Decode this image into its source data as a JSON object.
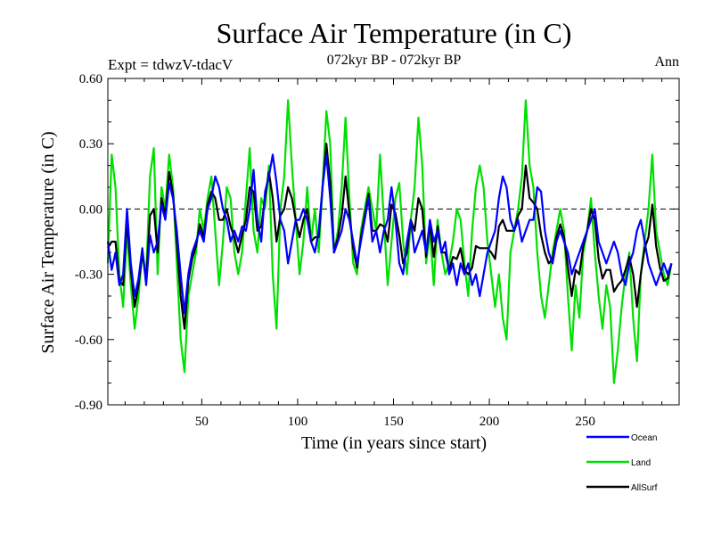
{
  "chart_data": {
    "type": "line",
    "title": "Surface Air Temperature (in C)",
    "subtitle_left": "Expt = tdwzV-tdacV",
    "subtitle_center": "072kyr BP - 072kyr BP",
    "subtitle_right": "Ann",
    "xlabel": "Time (in years since start)",
    "ylabel": "Surface Air Temperature (in C)",
    "xlim": [
      1,
      299
    ],
    "ylim": [
      -0.9,
      0.6
    ],
    "xticks": [
      50,
      100,
      150,
      200,
      250
    ],
    "xtick_labels": [
      "50",
      "100",
      "150",
      "200",
      "250"
    ],
    "yticks": [
      -0.9,
      -0.6,
      -0.3,
      0.0,
      0.3,
      0.6
    ],
    "ytick_labels": [
      "-0.90",
      "-0.60",
      "-0.30",
      "0.00",
      "0.30",
      "0.60"
    ],
    "reference_line": {
      "y": 0.0,
      "style": "dashed"
    },
    "legend_position": "bottom-right, below plot",
    "x_start": 1,
    "x_step": 2,
    "series": [
      {
        "name": "Ocean",
        "color": "#0000ff",
        "values": [
          -0.15,
          -0.28,
          -0.2,
          -0.35,
          -0.3,
          0.0,
          -0.25,
          -0.4,
          -0.32,
          -0.18,
          -0.35,
          -0.12,
          -0.2,
          -0.15,
          0.02,
          -0.05,
          0.12,
          0.05,
          -0.1,
          -0.3,
          -0.48,
          -0.3,
          -0.2,
          -0.15,
          -0.1,
          -0.15,
          0.0,
          0.05,
          0.15,
          0.1,
          0.0,
          -0.05,
          -0.15,
          -0.1,
          -0.15,
          -0.08,
          -0.1,
          0.0,
          0.18,
          -0.05,
          -0.15,
          0.08,
          0.15,
          0.25,
          0.12,
          -0.05,
          -0.1,
          -0.25,
          -0.15,
          -0.05,
          -0.05,
          0.0,
          -0.05,
          -0.15,
          -0.2,
          -0.1,
          0.1,
          0.25,
          0.05,
          -0.2,
          -0.15,
          -0.1,
          0.0,
          -0.05,
          -0.15,
          -0.25,
          -0.15,
          -0.05,
          0.05,
          -0.15,
          -0.1,
          -0.2,
          -0.1,
          -0.05,
          0.1,
          -0.05,
          -0.25,
          -0.3,
          -0.15,
          -0.05,
          -0.2,
          -0.15,
          -0.1,
          -0.2,
          -0.05,
          -0.15,
          -0.1,
          -0.2,
          -0.15,
          -0.3,
          -0.25,
          -0.35,
          -0.25,
          -0.3,
          -0.25,
          -0.35,
          -0.3,
          -0.4,
          -0.3,
          -0.2,
          -0.15,
          -0.1,
          0.05,
          0.15,
          0.1,
          -0.05,
          -0.1,
          -0.05,
          -0.15,
          -0.1,
          -0.05,
          -0.05,
          0.1,
          0.08,
          -0.1,
          -0.2,
          -0.25,
          -0.15,
          -0.1,
          -0.15,
          -0.2,
          -0.3,
          -0.25,
          -0.2,
          -0.15,
          -0.1,
          -0.05,
          0.0,
          -0.15,
          -0.2,
          -0.25,
          -0.2,
          -0.15,
          -0.2,
          -0.3,
          -0.35,
          -0.25,
          -0.2,
          -0.1,
          -0.05,
          -0.15,
          -0.25,
          -0.3,
          -0.35,
          -0.3,
          -0.25,
          -0.3,
          -0.25
        ],
        "x_extra_note": ""
      },
      {
        "name": "Land",
        "color": "#00e000",
        "values": [
          -0.25,
          0.25,
          0.1,
          -0.3,
          -0.45,
          -0.1,
          -0.35,
          -0.55,
          -0.4,
          -0.2,
          -0.3,
          0.15,
          0.28,
          -0.3,
          0.1,
          0.0,
          0.25,
          0.1,
          -0.25,
          -0.6,
          -0.75,
          -0.4,
          -0.3,
          -0.2,
          0.0,
          -0.1,
          0.05,
          0.15,
          -0.1,
          -0.35,
          -0.15,
          0.1,
          0.05,
          -0.2,
          -0.3,
          -0.2,
          0.05,
          0.28,
          -0.1,
          -0.2,
          0.05,
          0.0,
          0.2,
          -0.3,
          -0.55,
          0.0,
          0.15,
          0.5,
          0.2,
          -0.05,
          -0.3,
          -0.15,
          0.1,
          -0.15,
          0.0,
          -0.2,
          0.1,
          0.45,
          0.3,
          -0.2,
          -0.1,
          0.1,
          0.42,
          0.05,
          -0.25,
          -0.3,
          -0.1,
          0.0,
          0.1,
          0.0,
          -0.1,
          0.25,
          -0.05,
          -0.35,
          -0.15,
          0.05,
          0.12,
          -0.15,
          -0.3,
          -0.05,
          0.1,
          0.42,
          0.2,
          -0.25,
          -0.1,
          -0.35,
          -0.05,
          -0.2,
          -0.3,
          -0.25,
          -0.15,
          0.0,
          -0.05,
          -0.25,
          -0.4,
          -0.1,
          0.1,
          0.2,
          0.1,
          -0.15,
          -0.3,
          -0.45,
          -0.3,
          -0.5,
          -0.6,
          -0.2,
          -0.1,
          0.0,
          0.15,
          0.5,
          0.2,
          0.1,
          -0.2,
          -0.4,
          -0.5,
          -0.35,
          -0.2,
          -0.1,
          0.0,
          -0.1,
          -0.4,
          -0.65,
          -0.35,
          -0.5,
          -0.2,
          -0.1,
          0.05,
          -0.2,
          -0.4,
          -0.55,
          -0.35,
          -0.45,
          -0.8,
          -0.65,
          -0.45,
          -0.3,
          -0.2,
          -0.5,
          -0.7,
          -0.3,
          -0.15,
          0.0,
          0.25,
          -0.1,
          -0.2,
          -0.3,
          -0.35,
          -0.25
        ]
      },
      {
        "name": "AllSurf",
        "color": "#000000",
        "values": [
          -0.18,
          -0.15,
          -0.15,
          -0.33,
          -0.35,
          -0.05,
          -0.28,
          -0.45,
          -0.35,
          -0.2,
          -0.33,
          -0.03,
          0.0,
          -0.2,
          0.05,
          -0.03,
          0.17,
          0.07,
          -0.15,
          -0.4,
          -0.55,
          -0.33,
          -0.23,
          -0.17,
          -0.07,
          -0.13,
          0.02,
          0.08,
          0.05,
          -0.05,
          -0.05,
          0.0,
          -0.08,
          -0.13,
          -0.2,
          -0.12,
          -0.05,
          0.1,
          0.08,
          -0.1,
          -0.08,
          0.05,
          0.17,
          0.05,
          -0.15,
          -0.03,
          0.0,
          0.1,
          0.05,
          -0.05,
          -0.13,
          -0.05,
          0.0,
          -0.15,
          -0.13,
          -0.13,
          0.1,
          0.3,
          0.12,
          -0.2,
          -0.13,
          -0.03,
          0.15,
          -0.02,
          -0.18,
          -0.27,
          -0.13,
          -0.03,
          0.07,
          -0.1,
          -0.1,
          -0.07,
          -0.08,
          -0.15,
          0.02,
          -0.02,
          -0.12,
          -0.25,
          -0.2,
          -0.05,
          -0.1,
          0.05,
          0.0,
          -0.22,
          -0.07,
          -0.22,
          -0.08,
          -0.2,
          -0.2,
          -0.28,
          -0.22,
          -0.23,
          -0.18,
          -0.28,
          -0.3,
          -0.27,
          -0.17,
          -0.18,
          -0.18,
          -0.18,
          -0.2,
          -0.23,
          -0.08,
          -0.05,
          -0.1,
          -0.1,
          -0.1,
          -0.03,
          0.0,
          0.2,
          0.05,
          0.03,
          0.0,
          -0.12,
          -0.2,
          -0.25,
          -0.23,
          -0.13,
          -0.07,
          -0.13,
          -0.27,
          -0.4,
          -0.28,
          -0.3,
          -0.17,
          -0.1,
          0.0,
          -0.05,
          -0.23,
          -0.32,
          -0.28,
          -0.28,
          -0.38,
          -0.35,
          -0.33,
          -0.28,
          -0.22,
          -0.3,
          -0.45,
          -0.3,
          -0.18,
          -0.13,
          0.02,
          -0.17,
          -0.27,
          -0.33,
          -0.32,
          -0.25
        ]
      }
    ]
  }
}
